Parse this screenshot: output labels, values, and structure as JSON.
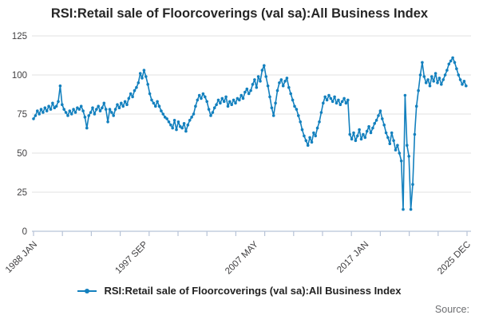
{
  "chart_data": {
    "type": "line",
    "title": "RSI:Retail sale of Floorcoverings (val sa):All Business Index",
    "xlabel": "",
    "ylabel": "",
    "ylim": [
      0,
      125
    ],
    "yticks": [
      0,
      25,
      50,
      75,
      100,
      125
    ],
    "grid": "horizontal",
    "legend_position": "bottom",
    "x_start": "1988 JAN",
    "x_end": "2025 DEC",
    "sample_interval_months": 2,
    "total_months": 455,
    "xtick_labels": [
      {
        "label": "1988 JAN",
        "month": 0
      },
      {
        "label": "1997 SEP",
        "month": 116
      },
      {
        "label": "2007 MAY",
        "month": 232
      },
      {
        "label": "2017 JAN",
        "month": 348
      },
      {
        "label": "2025 DEC",
        "month": 455
      }
    ],
    "minor_tick_count": 16,
    "line_color": "#1380be",
    "series": [
      {
        "name": "RSI:Retail sale of Floorcoverings (val sa):All Business Index",
        "color": "#1380be",
        "values": [
          72,
          74,
          77,
          75,
          78,
          76,
          79,
          77,
          80,
          78,
          82,
          79,
          80,
          83,
          93,
          81,
          78,
          76,
          74,
          77,
          75,
          78,
          76,
          79,
          78,
          80,
          77,
          73,
          66,
          74,
          76,
          79,
          75,
          78,
          80,
          77,
          79,
          82,
          78,
          70,
          78,
          76,
          74,
          78,
          81,
          79,
          82,
          80,
          83,
          81,
          85,
          88,
          86,
          90,
          92,
          95,
          101,
          98,
          103,
          99,
          94,
          88,
          84,
          82,
          80,
          83,
          80,
          77,
          75,
          73,
          72,
          70,
          68,
          66,
          71,
          65,
          70,
          67,
          66,
          69,
          64,
          68,
          71,
          73,
          75,
          80,
          84,
          87,
          85,
          88,
          86,
          83,
          78,
          74,
          76,
          79,
          81,
          84,
          82,
          85,
          83,
          86,
          80,
          83,
          81,
          84,
          82,
          85,
          84,
          87,
          85,
          89,
          91,
          88,
          90,
          94,
          97,
          92,
          99,
          96,
          103,
          106,
          99,
          93,
          86,
          79,
          74,
          82,
          90,
          95,
          97,
          93,
          96,
          98,
          92,
          88,
          84,
          80,
          78,
          74,
          70,
          65,
          61,
          58,
          55,
          60,
          57,
          63,
          61,
          66,
          70,
          76,
          82,
          86,
          84,
          87,
          85,
          83,
          86,
          82,
          84,
          81,
          83,
          85,
          82,
          84,
          62,
          59,
          63,
          58,
          61,
          65,
          59,
          62,
          60,
          64,
          67,
          63,
          66,
          69,
          71,
          74,
          77,
          72,
          68,
          63,
          60,
          56,
          63,
          58,
          52,
          55,
          50,
          45,
          14,
          87,
          55,
          48,
          14,
          30,
          62,
          80,
          90,
          100,
          108,
          99,
          95,
          97,
          93,
          99,
          96,
          101,
          95,
          98,
          94,
          97,
          100,
          103,
          107,
          109,
          111,
          108,
          104,
          100,
          97,
          94,
          96,
          93
        ]
      }
    ]
  },
  "legend": {
    "label": "RSI:Retail sale of Floorcoverings (val sa):All Business Index"
  },
  "source": {
    "label": "Source:"
  }
}
